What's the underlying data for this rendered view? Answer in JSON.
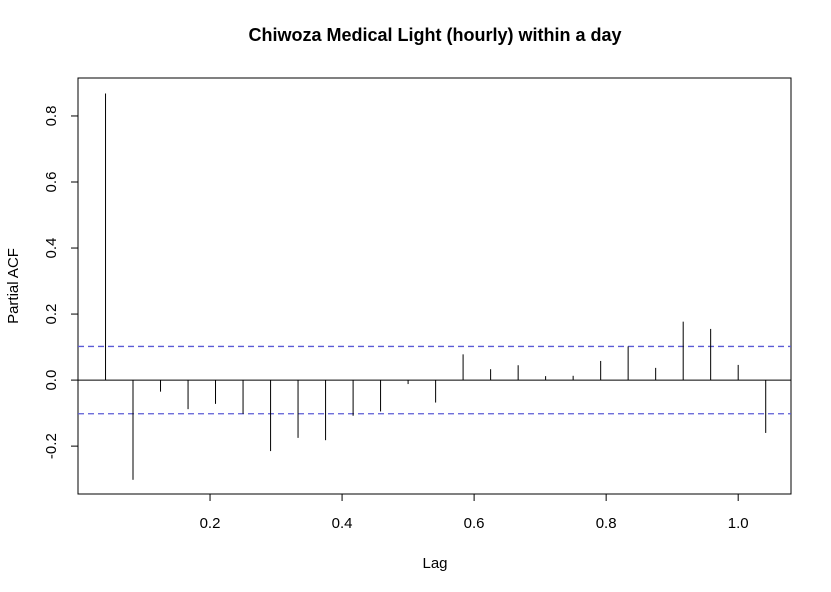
{
  "chart_data": {
    "type": "bar",
    "subtype": "partial-autocorrelation",
    "title": "Chiwoza Medical Light (hourly) within a day",
    "xlabel": "Lag",
    "ylabel": "Partial ACF",
    "xlim": [
      0.0,
      1.08
    ],
    "ylim": [
      -0.345,
      0.915
    ],
    "x_ticks": [
      0.2,
      0.4,
      0.6,
      0.8,
      1.0
    ],
    "x_tick_labels": [
      "0.2",
      "0.4",
      "0.6",
      "0.8",
      "1.0"
    ],
    "y_ticks": [
      -0.2,
      0.0,
      0.2,
      0.4,
      0.6,
      0.8
    ],
    "y_tick_labels": [
      "-0.2",
      "0.0",
      "0.2",
      "0.4",
      "0.6",
      "0.8"
    ],
    "zero_line": 0.0,
    "confidence_bounds": [
      0.102,
      -0.102
    ],
    "confidence_color": "#5b5bd6",
    "bar_color": "#000000",
    "lags": [
      0.0417,
      0.0833,
      0.125,
      0.1667,
      0.2083,
      0.25,
      0.2917,
      0.3333,
      0.375,
      0.4167,
      0.4583,
      0.5,
      0.5417,
      0.5833,
      0.625,
      0.6667,
      0.7083,
      0.75,
      0.7917,
      0.8333,
      0.875,
      0.9167,
      0.9583,
      1.0,
      1.0417
    ],
    "values": [
      0.868,
      -0.302,
      -0.035,
      -0.088,
      -0.072,
      -0.102,
      -0.215,
      -0.175,
      -0.182,
      -0.108,
      -0.095,
      -0.012,
      -0.068,
      0.078,
      0.033,
      0.045,
      0.012,
      0.013,
      0.058,
      0.102,
      0.037,
      0.177,
      0.155,
      0.046,
      -0.16
    ]
  }
}
